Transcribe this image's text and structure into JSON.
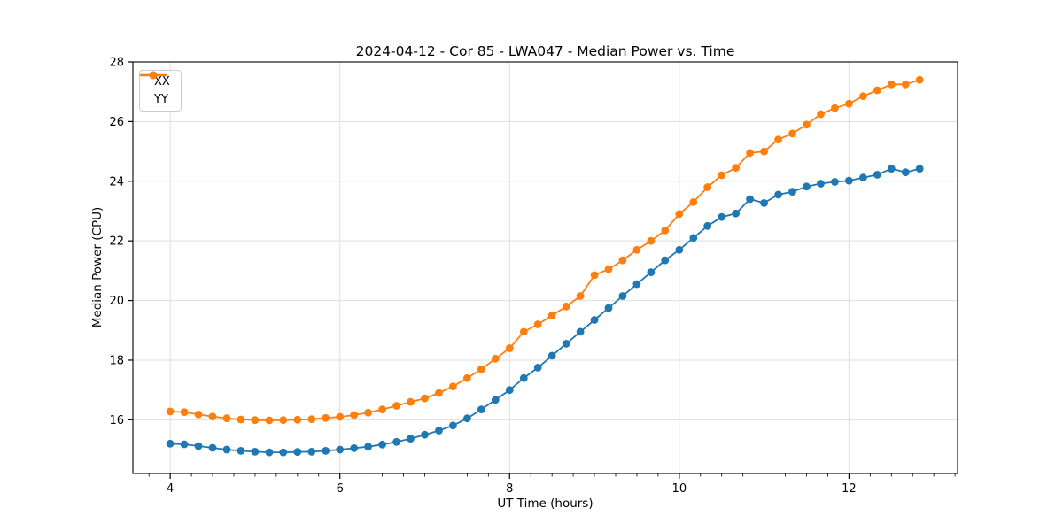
{
  "chart_data": {
    "type": "line",
    "title": "2024-04-12 - Cor 85 - LWA047 - Median Power vs. Time",
    "xlabel": "UT Time (hours)",
    "ylabel": "Median Power (CPU)",
    "xlim": [
      3.56,
      13.28
    ],
    "ylim": [
      14.2,
      28.0
    ],
    "xticks": [
      4,
      6,
      8,
      10,
      12
    ],
    "xtick_labels": [
      "4",
      "6",
      "8",
      "10",
      "12"
    ],
    "x_minor_tick_step": 0.25,
    "yticks": [
      16,
      18,
      20,
      22,
      24,
      26,
      28
    ],
    "ytick_labels": [
      "16",
      "18",
      "20",
      "22",
      "24",
      "26",
      "28"
    ],
    "grid": true,
    "legend_position": "upper-left",
    "x": [
      4.0,
      4.167,
      4.333,
      4.5,
      4.667,
      4.833,
      5.0,
      5.167,
      5.333,
      5.5,
      5.667,
      5.833,
      6.0,
      6.167,
      6.333,
      6.5,
      6.667,
      6.833,
      7.0,
      7.167,
      7.333,
      7.5,
      7.667,
      7.833,
      8.0,
      8.167,
      8.333,
      8.5,
      8.667,
      8.833,
      9.0,
      9.167,
      9.333,
      9.5,
      9.667,
      9.833,
      10.0,
      10.167,
      10.333,
      10.5,
      10.667,
      10.833,
      11.0,
      11.167,
      11.333,
      11.5,
      11.667,
      11.833,
      12.0,
      12.167,
      12.333,
      12.5,
      12.667,
      12.833
    ],
    "series": [
      {
        "name": "XX",
        "color": "#1f77b4",
        "marker": "circle",
        "values": [
          15.2,
          15.18,
          15.12,
          15.06,
          15.0,
          14.96,
          14.93,
          14.91,
          14.91,
          14.92,
          14.93,
          14.96,
          15.0,
          15.05,
          15.1,
          15.17,
          15.26,
          15.37,
          15.5,
          15.64,
          15.81,
          16.05,
          16.35,
          16.67,
          17.0,
          17.4,
          17.75,
          18.15,
          18.55,
          18.95,
          19.35,
          19.75,
          20.15,
          20.55,
          20.95,
          21.35,
          21.7,
          22.1,
          22.5,
          22.8,
          22.92,
          23.4,
          23.27,
          23.55,
          23.65,
          23.82,
          23.92,
          23.98,
          24.02,
          24.12,
          24.22,
          24.42,
          24.3,
          24.42
        ]
      },
      {
        "name": "YY",
        "color": "#ff7f0e",
        "marker": "circle",
        "values": [
          16.28,
          16.26,
          16.18,
          16.11,
          16.05,
          16.01,
          15.99,
          15.98,
          15.99,
          16.0,
          16.02,
          16.06,
          16.1,
          16.16,
          16.24,
          16.35,
          16.47,
          16.6,
          16.72,
          16.9,
          17.12,
          17.4,
          17.7,
          18.05,
          18.4,
          18.95,
          19.2,
          19.5,
          19.8,
          20.15,
          20.85,
          21.05,
          21.35,
          21.7,
          22.0,
          22.35,
          22.9,
          23.3,
          23.8,
          24.2,
          24.45,
          24.95,
          25.0,
          25.4,
          25.6,
          25.9,
          26.25,
          26.45,
          26.6,
          26.85,
          27.05,
          27.25,
          27.25,
          27.4
        ]
      }
    ],
    "colors": {
      "grid": "#dedede",
      "spine": "#000000",
      "tick": "#000000",
      "background": "#ffffff"
    }
  }
}
